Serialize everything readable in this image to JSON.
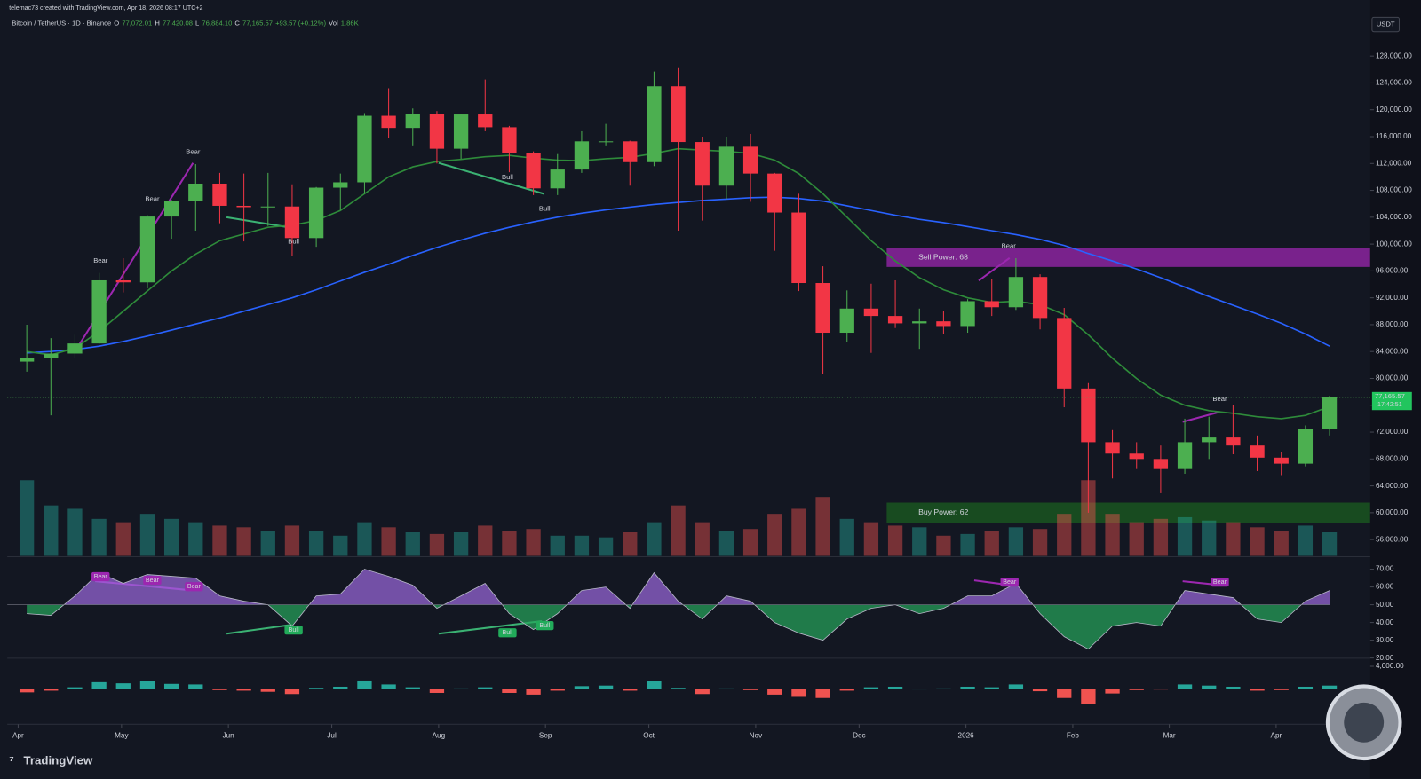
{
  "watermark": "telemac73 created with TradingView.com, Apr 18, 2026 08:17 UTC+2",
  "footer": "TradingView",
  "chart_data": {
    "type": "candlestick",
    "title": "Bitcoin / TetherUS · 1D · Binance",
    "header_values": [
      {
        "label": "O",
        "value": "77,072.01"
      },
      {
        "label": "H",
        "value": "77,420.08"
      },
      {
        "label": "L",
        "value": "76,884.10"
      },
      {
        "label": "C",
        "value": "77,165.57"
      }
    ],
    "change": "+93.57 (+0.12%)",
    "volume_label": "Vol",
    "volume_value": "1.86K",
    "currency": "USDT",
    "last_price_label": "77,165.57",
    "countdown": "17:42:51",
    "up_color": "#4caf50",
    "down_color": "#f23645",
    "xlim": [
      4.84,
      400.3
    ],
    "xticks": [
      {
        "value": 8,
        "label": "Apr"
      },
      {
        "value": 38,
        "label": "May"
      },
      {
        "value": 69,
        "label": "Jun"
      },
      {
        "value": 99,
        "label": "Jul"
      },
      {
        "value": 130,
        "label": "Aug"
      },
      {
        "value": 161,
        "label": "Sep"
      },
      {
        "value": 191,
        "label": "Oct"
      },
      {
        "value": 222,
        "label": "Nov"
      },
      {
        "value": 252,
        "label": "Dec"
      },
      {
        "value": 283,
        "label": "2026"
      },
      {
        "value": 314,
        "label": "Feb"
      },
      {
        "value": 342,
        "label": "Mar"
      },
      {
        "value": 373,
        "label": "Apr"
      }
    ],
    "ylim": [
      53573,
      133650
    ],
    "yticks": [
      {
        "value": 56000,
        "label": "56,000.00"
      },
      {
        "value": 60000,
        "label": "60,000.00"
      },
      {
        "value": 64000,
        "label": "64,000.00"
      },
      {
        "value": 68000,
        "label": "68,000.00"
      },
      {
        "value": 72000,
        "label": "72,000.00"
      },
      {
        "value": 76000,
        "label": "76,000.00"
      },
      {
        "value": 80000,
        "label": "80,000.00"
      },
      {
        "value": 84000,
        "label": "84,000.00"
      },
      {
        "value": 88000,
        "label": "88,000.00"
      },
      {
        "value": 92000,
        "label": "92,000.00"
      },
      {
        "value": 96000,
        "label": "96,000.00"
      },
      {
        "value": 100000,
        "label": "100,000.00"
      },
      {
        "value": 104000,
        "label": "104,000.00"
      },
      {
        "value": 108000,
        "label": "108,000.00"
      },
      {
        "value": 112000,
        "label": "112,000.00"
      },
      {
        "value": 116000,
        "label": "116,000.00"
      },
      {
        "value": 120000,
        "label": "120,000.00"
      },
      {
        "value": 124000,
        "label": "124,000.00"
      },
      {
        "value": 128000,
        "label": "128,000.00"
      }
    ],
    "x": [
      10.5,
      17.5,
      24.5,
      31.5,
      38.5,
      45.5,
      52.5,
      59.5,
      66.5,
      73.5,
      80.5,
      87.5,
      94.5,
      101.5,
      108.5,
      115.5,
      122.5,
      129.5,
      136.5,
      143.5,
      150.5,
      157.5,
      164.5,
      171.5,
      178.5,
      185.5,
      192.5,
      199.5,
      206.5,
      213.5,
      220.5,
      227.5,
      234.5,
      241.5,
      248.5,
      255.5,
      262.5,
      269.5,
      276.5,
      283.5,
      290.5,
      297.5,
      304.5,
      311.5,
      318.5,
      325.5,
      332.5,
      339.5,
      346.5,
      353.5,
      360.5,
      367.5,
      374.5,
      381.5,
      388.5
    ],
    "candles": {
      "open": [
        82500,
        83000,
        83700,
        85200,
        94600,
        94300,
        104100,
        106400,
        109000,
        105700,
        105500,
        105600,
        100900,
        108400,
        109200,
        119100,
        117300,
        119400,
        114200,
        119300,
        117400,
        113500,
        108300,
        111100,
        115300,
        115300,
        112200,
        123500,
        115200,
        108700,
        114500,
        110500,
        104700,
        94200,
        86800,
        90400,
        89300,
        88200,
        88500,
        87800,
        91500,
        90600,
        95100,
        89000,
        78500,
        70500,
        68800,
        68000,
        66500,
        70500,
        71200,
        70000,
        68200,
        67300,
        72500
      ],
      "high": [
        88000,
        86000,
        86500,
        95700,
        97900,
        104300,
        106600,
        111900,
        110600,
        110500,
        110600,
        108900,
        108500,
        110500,
        119500,
        123200,
        120200,
        119800,
        119300,
        124500,
        117600,
        113800,
        113400,
        116800,
        117900,
        115400,
        125700,
        126200,
        116000,
        116000,
        116400,
        110600,
        107500,
        96700,
        93100,
        94100,
        94600,
        90400,
        90000,
        91800,
        94800,
        97900,
        95500,
        90500,
        79300,
        72300,
        70500,
        70000,
        74000,
        74300,
        76000,
        71500,
        69000,
        73000,
        77420
      ],
      "low": [
        81000,
        74500,
        83000,
        85100,
        92800,
        93400,
        100800,
        102000,
        103100,
        100400,
        102700,
        98200,
        99600,
        105100,
        107500,
        115800,
        114700,
        112000,
        112700,
        116800,
        110700,
        107300,
        107300,
        110600,
        114700,
        108700,
        111600,
        102000,
        103500,
        106700,
        106300,
        99000,
        93000,
        80600,
        85400,
        83800,
        87500,
        84400,
        86600,
        86800,
        89300,
        90200,
        87300,
        75700,
        60000,
        65100,
        66500,
        62900,
        65800,
        68000,
        68700,
        66200,
        65600,
        66900,
        71500
      ],
      "close": [
        83000,
        83700,
        85200,
        94600,
        94300,
        104100,
        106400,
        109000,
        105700,
        105500,
        105600,
        100900,
        108400,
        109200,
        119100,
        117300,
        119400,
        114200,
        119300,
        117400,
        113500,
        108300,
        111100,
        115300,
        115300,
        112200,
        123500,
        115200,
        108700,
        114500,
        110500,
        104700,
        94200,
        86800,
        90400,
        89300,
        88200,
        88500,
        87800,
        91500,
        90600,
        95100,
        89000,
        78500,
        70500,
        68800,
        68000,
        66500,
        70500,
        71200,
        70000,
        68200,
        67300,
        72500,
        77165.57
      ]
    },
    "lines": [
      {
        "color": "#2962ff",
        "values": [
          83800,
          84000,
          84300,
          84800,
          85500,
          86300,
          87200,
          88100,
          89000,
          90000,
          91000,
          92000,
          93200,
          94500,
          95800,
          97000,
          98300,
          99500,
          100600,
          101600,
          102500,
          103300,
          104000,
          104600,
          105100,
          105500,
          105900,
          106200,
          106500,
          106700,
          106900,
          107000,
          106800,
          106400,
          105700,
          105000,
          104300,
          103700,
          103200,
          102600,
          102000,
          101400,
          100700,
          99800,
          98600,
          97500,
          96300,
          95000,
          93600,
          92200,
          90900,
          89600,
          88200,
          86600,
          84800
        ]
      },
      {
        "color": "#2e8b3a",
        "values": [
          84000,
          83500,
          84500,
          87000,
          90000,
          93000,
          96000,
          98500,
          100500,
          101500,
          102500,
          102800,
          103500,
          105000,
          107500,
          110000,
          111500,
          112300,
          112600,
          113000,
          113200,
          112800,
          112500,
          112400,
          112700,
          112900,
          113500,
          114200,
          114000,
          113800,
          113500,
          112500,
          110500,
          107500,
          104000,
          100500,
          97500,
          95000,
          93200,
          92000,
          91300,
          91500,
          91000,
          89500,
          86500,
          83000,
          80000,
          77500,
          76000,
          75200,
          74800,
          74300,
          74000,
          74500,
          75800
        ]
      }
    ],
    "zones": [
      {
        "label": "Sell Power: 68",
        "low": 96600,
        "high": 99400,
        "start": 260,
        "color": "#9c27b0"
      },
      {
        "label": "Buy Power: 62",
        "low": 58500,
        "high": 61500,
        "start": 260,
        "color": "#1b5e20"
      }
    ],
    "signals": [
      "Bear",
      "Bear",
      "Bear",
      "Bear",
      "Bear",
      "Bull",
      "Bull",
      "Bull"
    ],
    "volume": {
      "vlim": [
        0,
        70000
      ],
      "values": [
        45000,
        30000,
        28000,
        22000,
        20000,
        25000,
        22000,
        20000,
        18000,
        17000,
        15000,
        18000,
        15000,
        12000,
        20000,
        17000,
        14000,
        13000,
        14000,
        18000,
        15000,
        16000,
        12000,
        12000,
        11000,
        14000,
        20000,
        30000,
        20000,
        15000,
        16000,
        25000,
        28000,
        35000,
        22000,
        20000,
        18000,
        17000,
        12000,
        13000,
        15000,
        17000,
        16000,
        25000,
        45000,
        25000,
        20000,
        22000,
        23000,
        21000,
        20000,
        17000,
        15000,
        18000,
        14000
      ]
    },
    "rsi": {
      "ylim": [
        19.9,
        76.5
      ],
      "yticks": [
        {
          "value": 70,
          "label": "70.00"
        },
        {
          "value": 60,
          "label": "60.00"
        },
        {
          "value": 50,
          "label": "50.00"
        },
        {
          "value": 40,
          "label": "40.00"
        },
        {
          "value": 30,
          "label": "30.00"
        },
        {
          "value": 20,
          "label": "20.00"
        }
      ],
      "values": [
        45,
        44,
        55,
        68,
        62,
        67,
        66,
        65,
        55,
        52,
        50,
        38,
        55,
        56,
        70,
        66,
        61,
        48,
        55,
        62,
        45,
        36,
        45,
        58,
        60,
        48,
        68,
        52,
        42,
        55,
        52,
        40,
        34,
        30,
        42,
        48,
        50,
        45,
        48,
        55,
        55,
        62,
        45,
        32,
        25,
        38,
        40,
        38,
        58,
        56,
        54,
        42,
        40,
        52,
        58
      ],
      "signals": [
        "Bear",
        "Bear",
        "Bear",
        "Bear",
        "Bear",
        "Bull",
        "Bull",
        "Bull"
      ]
    },
    "macd": {
      "ylim": [
        -6240,
        5280
      ],
      "yticks": [
        {
          "value": 4000,
          "label": "4,000.00"
        }
      ],
      "values": [
        -600,
        -300,
        300,
        1200,
        1000,
        1400,
        900,
        800,
        -200,
        -300,
        -500,
        -900,
        200,
        400,
        1500,
        800,
        300,
        -700,
        100,
        300,
        -700,
        -1000,
        -300,
        500,
        600,
        -300,
        1400,
        200,
        -900,
        100,
        -200,
        -1000,
        -1400,
        -1600,
        -300,
        300,
        400,
        0,
        100,
        400,
        300,
        800,
        -400,
        -1600,
        -2600,
        -800,
        -200,
        -100,
        800,
        600,
        400,
        -300,
        -200,
        400,
        600
      ]
    }
  }
}
